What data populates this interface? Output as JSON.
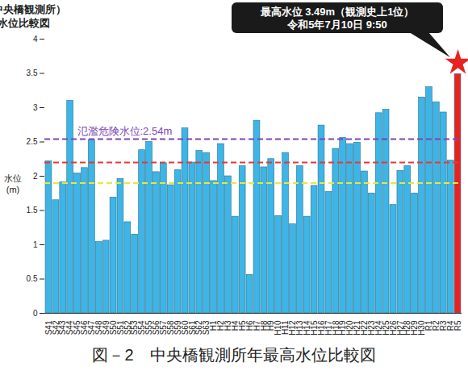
{
  "chart_data": {
    "type": "bar",
    "title": [
      "巨瀬川（中央橋観測所）",
      "年最高水位比較図"
    ],
    "y_label": [
      "水位",
      "(m)"
    ],
    "caption": "図－2　中央橋観測所年最高水位比較図",
    "categories": [
      "S41",
      "S42",
      "S43",
      "S44",
      "S45",
      "S46",
      "S47",
      "S48",
      "S49",
      "S50",
      "S51",
      "S52",
      "S53",
      "S54",
      "S55",
      "S56",
      "S57",
      "S58",
      "S59",
      "S60",
      "S61",
      "S62",
      "S63",
      "H1",
      "H2",
      "H3",
      "H4",
      "H5",
      "H6",
      "H7",
      "H8",
      "H9",
      "H10",
      "H11",
      "H12",
      "H13",
      "H14",
      "H15",
      "H16",
      "H17",
      "H18",
      "H19",
      "H20",
      "H21",
      "H22",
      "H23",
      "H24",
      "H25",
      "H26",
      "H27",
      "H28",
      "H29",
      "H30",
      "R1",
      "R2",
      "R3",
      "R4",
      "R5"
    ],
    "values": [
      2.22,
      1.65,
      1.91,
      3.1,
      2.04,
      2.12,
      2.53,
      1.04,
      1.06,
      1.69,
      1.96,
      1.33,
      1.15,
      2.38,
      2.5,
      2.06,
      2.19,
      1.87,
      2.09,
      2.7,
      2.2,
      2.37,
      2.34,
      1.93,
      2.47,
      2.0,
      1.41,
      2.15,
      0.56,
      2.81,
      2.13,
      2.25,
      1.42,
      2.34,
      1.3,
      2.15,
      1.41,
      1.86,
      2.74,
      1.77,
      2.4,
      2.56,
      2.47,
      2.49,
      2.07,
      1.75,
      2.92,
      2.97,
      1.58,
      2.08,
      2.15,
      1.75,
      3.15,
      3.3,
      3.08,
      2.93,
      2.23,
      3.49
    ],
    "colors": [
      "#3db5e6",
      "#3db5e6",
      "#3db5e6",
      "#3db5e6",
      "#3db5e6",
      "#3db5e6",
      "#3db5e6",
      "#3db5e6",
      "#3db5e6",
      "#3db5e6",
      "#3db5e6",
      "#3db5e6",
      "#3db5e6",
      "#3db5e6",
      "#3db5e6",
      "#3db5e6",
      "#3db5e6",
      "#3db5e6",
      "#3db5e6",
      "#3db5e6",
      "#3db5e6",
      "#3db5e6",
      "#3db5e6",
      "#3db5e6",
      "#3db5e6",
      "#3db5e6",
      "#3db5e6",
      "#3db5e6",
      "#3db5e6",
      "#3db5e6",
      "#3db5e6",
      "#3db5e6",
      "#3db5e6",
      "#3db5e6",
      "#3db5e6",
      "#3db5e6",
      "#3db5e6",
      "#3db5e6",
      "#3db5e6",
      "#3db5e6",
      "#3db5e6",
      "#3db5e6",
      "#3db5e6",
      "#3db5e6",
      "#3db5e6",
      "#3db5e6",
      "#3db5e6",
      "#3db5e6",
      "#3db5e6",
      "#3db5e6",
      "#3db5e6",
      "#3db5e6",
      "#3db5e6",
      "#3db5e6",
      "#3db5e6",
      "#3db5e6",
      "#3db5e6",
      "#e8231f"
    ],
    "ylim": [
      0,
      4
    ],
    "yticks": [
      0,
      0.5,
      1,
      1.5,
      2,
      2.5,
      3,
      3.5,
      4
    ],
    "grid": false,
    "reference_lines": [
      {
        "value": 2.54,
        "label": "氾濫危険水位:2.54m",
        "color": "#7d45b5",
        "line_style": "dashed"
      },
      {
        "value": 2.2,
        "color": "#e53935",
        "line_style": "dashed"
      },
      {
        "value": 1.9,
        "color": "#e8e83a",
        "line_style": "dashed"
      }
    ],
    "annotation": {
      "category": "R5",
      "value": 3.49,
      "marker": "star",
      "text": [
        "最高水位 3.49m（観測史上1位）",
        "令和5年7月10日 9:50"
      ]
    }
  }
}
